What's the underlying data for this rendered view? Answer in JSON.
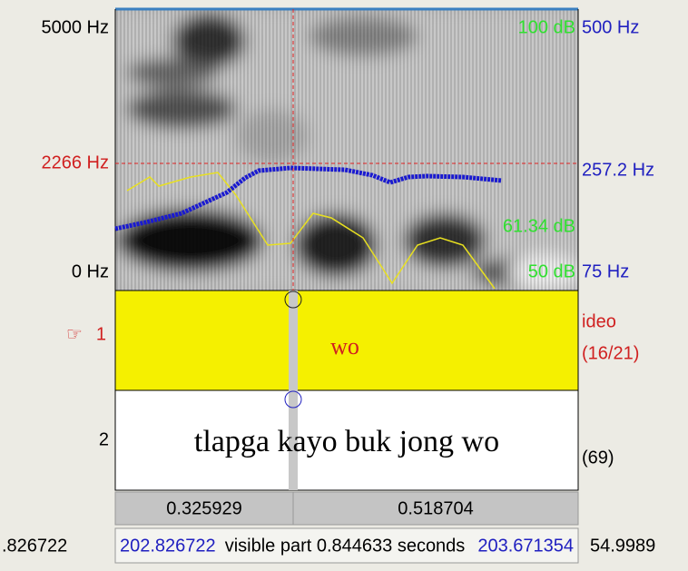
{
  "spectrogram": {
    "left_labels": [
      "5000 Hz",
      "2266 Hz",
      "0 Hz"
    ],
    "right_labels": [
      "500 Hz",
      "257.2 Hz",
      "75 Hz"
    ],
    "db_labels": [
      "100 dB",
      "61.34 dB",
      "50 dB"
    ]
  },
  "tiers": [
    {
      "pointer": "☞",
      "number": "1",
      "text": "wo",
      "name": "ideo",
      "count": "(16/21)"
    },
    {
      "number": "2",
      "text": "tlapga kayo buk jong wo",
      "count": "(69)"
    }
  ],
  "durations": [
    "0.325929",
    "0.518704"
  ],
  "status": {
    "left": ".826722",
    "start": "202.826722",
    "visible": "visible part 0.844633 seconds",
    "end": "203.671354",
    "right": "54.9989"
  }
}
